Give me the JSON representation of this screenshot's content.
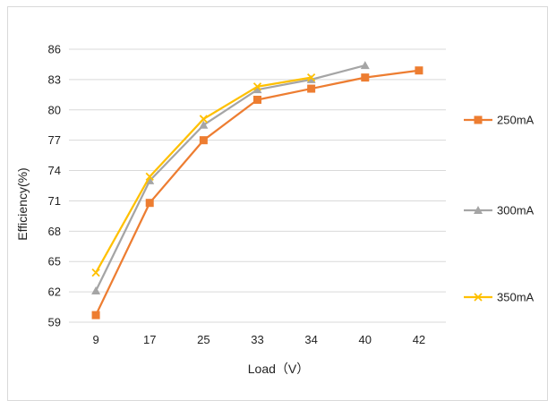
{
  "chart_data": {
    "type": "line",
    "title": "",
    "xlabel": "Load（V）",
    "ylabel": "Efficiency(%)",
    "categories": [
      "9",
      "17",
      "25",
      "33",
      "34",
      "40",
      "42"
    ],
    "ylim": [
      59,
      86
    ],
    "yticks": [
      59,
      62,
      65,
      68,
      71,
      74,
      77,
      80,
      83,
      86
    ],
    "grid": true,
    "legend_position": "right",
    "series": [
      {
        "name": "250mA",
        "color": "#ed7d31",
        "marker": "square",
        "values": [
          59.7,
          70.8,
          77.0,
          81.0,
          82.1,
          83.2,
          83.9
        ]
      },
      {
        "name": "300mA",
        "color": "#a5a5a5",
        "marker": "triangle",
        "values": [
          62.1,
          73.0,
          78.5,
          82.0,
          83.0,
          84.4,
          null
        ]
      },
      {
        "name": "350mA",
        "color": "#ffc000",
        "marker": "x",
        "values": [
          63.9,
          73.4,
          79.1,
          82.3,
          83.2,
          null,
          null
        ]
      }
    ]
  }
}
